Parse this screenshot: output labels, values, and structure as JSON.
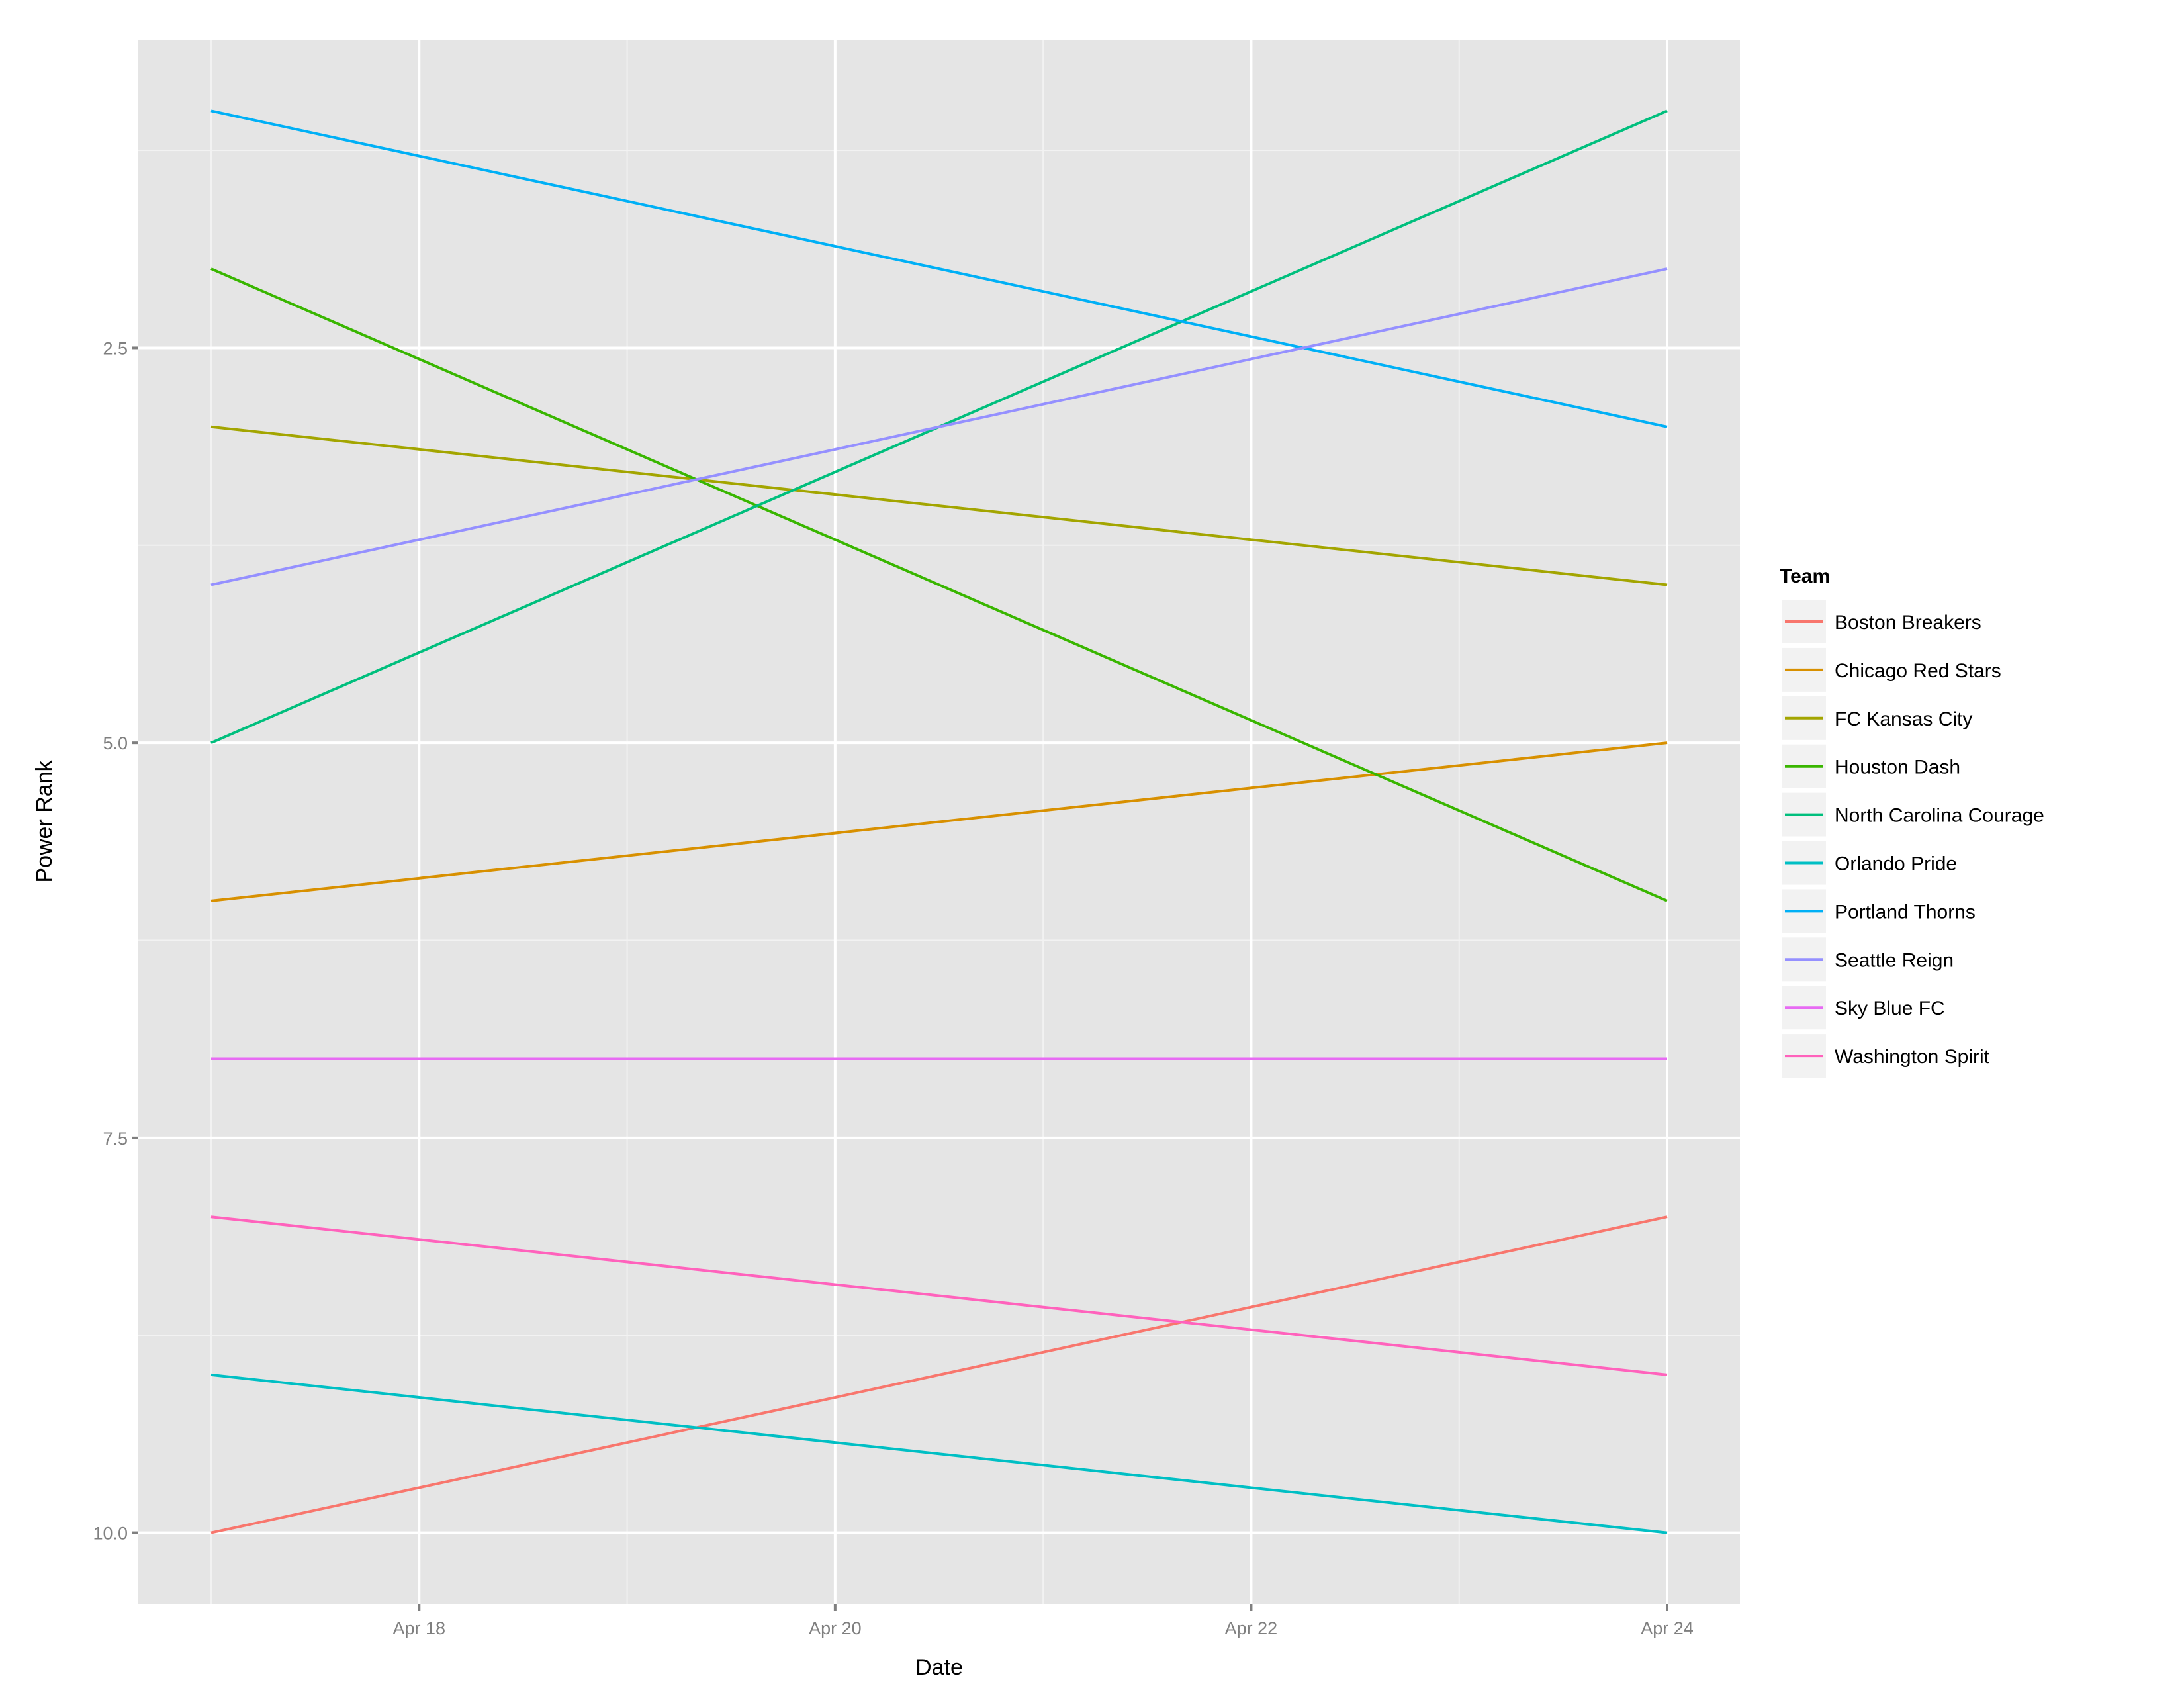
{
  "chart_data": {
    "type": "line",
    "title": "",
    "xlabel": "Date",
    "ylabel": "Power Rank",
    "x": [
      "Apr 17",
      "Apr 24"
    ],
    "x_day_values": [
      17,
      24
    ],
    "xlim_days": [
      16.65,
      24.35
    ],
    "x_ticks": [
      {
        "day": 18,
        "label": "Apr 18"
      },
      {
        "day": 20,
        "label": "Apr 20"
      },
      {
        "day": 22,
        "label": "Apr 22"
      },
      {
        "day": 24,
        "label": "Apr 24"
      }
    ],
    "y_ticks": [
      {
        "value": 2.5,
        "label": "2.5"
      },
      {
        "value": 5,
        "label": "5.0"
      },
      {
        "value": 7.5,
        "label": "7.5"
      },
      {
        "value": 10,
        "label": "10.0"
      }
    ],
    "ylim": [
      0.55,
      10.45
    ],
    "y_reversed": true,
    "grid": true,
    "legend": {
      "title": "Team",
      "placement": "right"
    },
    "series": [
      {
        "name": "Boston Breakers",
        "values": [
          10,
          8
        ],
        "color": "#F8766D"
      },
      {
        "name": "Chicago Red Stars",
        "values": [
          6,
          5
        ],
        "color": "#D89000"
      },
      {
        "name": "FC Kansas City",
        "values": [
          3,
          4
        ],
        "color": "#A3A500"
      },
      {
        "name": "Houston Dash",
        "values": [
          2,
          6
        ],
        "color": "#39B600"
      },
      {
        "name": "North Carolina Courage",
        "values": [
          5,
          1
        ],
        "color": "#00BF7D"
      },
      {
        "name": "Orlando Pride",
        "values": [
          9,
          10
        ],
        "color": "#00BFC4"
      },
      {
        "name": "Portland Thorns",
        "values": [
          1,
          3
        ],
        "color": "#00B0F6"
      },
      {
        "name": "Seattle Reign",
        "values": [
          4,
          2
        ],
        "color": "#9590FF"
      },
      {
        "name": "Sky Blue FC",
        "values": [
          7,
          7
        ],
        "color": "#E76BF3"
      },
      {
        "name": "Washington Spirit",
        "values": [
          8,
          9
        ],
        "color": "#FF62BC"
      }
    ]
  }
}
